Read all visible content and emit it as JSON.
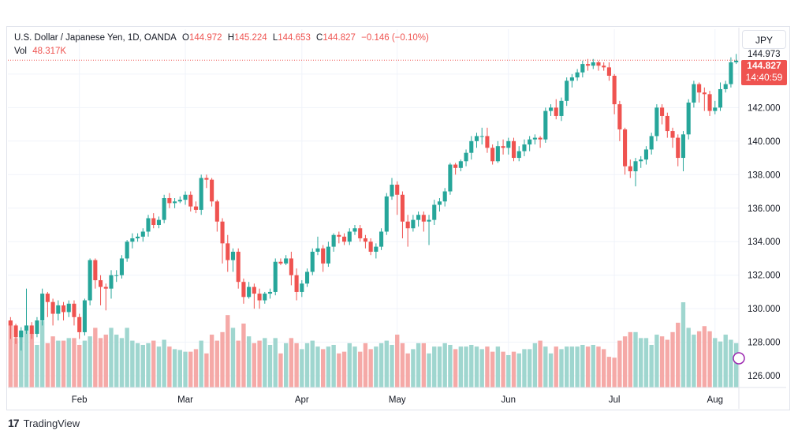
{
  "legend": {
    "symbol": "U.S. Dollar / Japanese Yen, 1D, OANDA",
    "open_label": "O",
    "open_value": "144.972",
    "high_label": "H",
    "high_value": "145.224",
    "low_label": "L",
    "low_value": "144.653",
    "close_label": "C",
    "close_value": "144.827",
    "change": "−0.146 (−0.10%)",
    "vol_label": "Vol",
    "vol_value": "48.317K"
  },
  "currency_button": "JPY",
  "price_tag": {
    "price": "144.827",
    "countdown": "14:40:59"
  },
  "top_value_label": "144.973",
  "brand": {
    "mark": "17",
    "name": "TradingView"
  },
  "colors": {
    "up": "#26a69a",
    "down": "#ef5350",
    "up_vol": "#9fd6cf",
    "down_vol": "#f5a9a7",
    "grid": "#f0f3fa"
  },
  "chart_data": {
    "type": "candlestick",
    "symbol": "USDJPY",
    "y_range": [
      125.3,
      145.5
    ],
    "y_ticks": [
      "126.000",
      "128.000",
      "130.000",
      "132.000",
      "134.000",
      "136.000",
      "138.000",
      "140.000",
      "142.000",
      "144.000"
    ],
    "y_tick_values": [
      126,
      128,
      130,
      132,
      134,
      136,
      138,
      140,
      142,
      144
    ],
    "x_labels": [
      "Feb",
      "Mar",
      "Apr",
      "May",
      "Jun",
      "Jul",
      "Aug"
    ],
    "x_label_index": [
      13,
      33,
      55,
      73,
      94,
      114,
      133
    ],
    "last_price": 144.827,
    "candles": [
      [
        129.3,
        129.0,
        128.2,
        129.5,
        0.78
      ],
      [
        129.0,
        128.3,
        127.9,
        129.1,
        0.58
      ],
      [
        128.3,
        128.7,
        127.5,
        128.9,
        0.66
      ],
      [
        128.7,
        129.0,
        128.5,
        131.2,
        0.68
      ],
      [
        129.0,
        128.5,
        128.2,
        129.2,
        0.64
      ],
      [
        128.5,
        129.3,
        128.3,
        129.5,
        0.5
      ],
      [
        129.3,
        130.9,
        129.0,
        131.2,
        0.78
      ],
      [
        130.9,
        130.4,
        129.5,
        131.0,
        0.52
      ],
      [
        130.4,
        129.7,
        129.0,
        130.6,
        0.6
      ],
      [
        129.7,
        130.2,
        129.3,
        130.5,
        0.55
      ],
      [
        130.2,
        129.8,
        129.3,
        130.4,
        0.55
      ],
      [
        129.8,
        130.3,
        129.5,
        130.5,
        0.58
      ],
      [
        130.3,
        129.5,
        129.0,
        130.5,
        0.58
      ],
      [
        129.5,
        128.6,
        128.2,
        129.7,
        0.5
      ],
      [
        128.6,
        130.5,
        128.4,
        130.6,
        0.55
      ],
      [
        130.5,
        132.9,
        130.2,
        133.0,
        0.6
      ],
      [
        132.9,
        131.7,
        131.2,
        133.0,
        0.7
      ],
      [
        131.7,
        131.3,
        130.2,
        132.0,
        0.58
      ],
      [
        131.3,
        131.2,
        129.9,
        131.5,
        0.62
      ],
      [
        131.2,
        132.0,
        130.6,
        132.3,
        0.7
      ],
      [
        132.0,
        132.0,
        131.6,
        132.3,
        0.62
      ],
      [
        132.0,
        133.0,
        131.8,
        133.2,
        0.58
      ],
      [
        133.0,
        134.0,
        132.8,
        134.1,
        0.7
      ],
      [
        134.0,
        134.2,
        133.6,
        134.5,
        0.55
      ],
      [
        134.2,
        134.3,
        134.0,
        134.5,
        0.52
      ],
      [
        134.3,
        134.6,
        134.0,
        134.8,
        0.5
      ],
      [
        134.6,
        135.4,
        134.3,
        135.6,
        0.52
      ],
      [
        135.4,
        135.0,
        134.8,
        135.7,
        0.55
      ],
      [
        135.0,
        135.3,
        134.8,
        135.5,
        0.48
      ],
      [
        135.3,
        136.6,
        135.1,
        136.8,
        0.56
      ],
      [
        136.6,
        136.3,
        136.0,
        136.9,
        0.48
      ],
      [
        136.3,
        136.4,
        136.0,
        136.6,
        0.45
      ],
      [
        136.4,
        136.5,
        136.3,
        136.7,
        0.44
      ],
      [
        136.5,
        136.8,
        136.2,
        137.0,
        0.42
      ],
      [
        136.8,
        136.1,
        135.8,
        137.0,
        0.42
      ],
      [
        136.1,
        135.9,
        135.7,
        136.4,
        0.45
      ],
      [
        135.9,
        137.8,
        135.6,
        138.0,
        0.55
      ],
      [
        137.8,
        137.7,
        137.2,
        138.0,
        0.4
      ],
      [
        137.7,
        136.4,
        136.1,
        137.8,
        0.62
      ],
      [
        136.4,
        135.2,
        134.6,
        136.5,
        0.55
      ],
      [
        135.2,
        133.9,
        132.7,
        135.4,
        0.65
      ],
      [
        133.9,
        132.9,
        132.2,
        134.4,
        0.85
      ],
      [
        132.9,
        133.4,
        132.2,
        133.6,
        0.7
      ],
      [
        133.4,
        131.6,
        131.2,
        133.6,
        0.55
      ],
      [
        131.6,
        130.7,
        130.3,
        131.8,
        0.75
      ],
      [
        130.7,
        131.3,
        130.6,
        131.6,
        0.6
      ],
      [
        131.3,
        130.9,
        130.0,
        131.5,
        0.52
      ],
      [
        130.9,
        130.5,
        130.0,
        131.2,
        0.55
      ],
      [
        130.5,
        130.9,
        130.3,
        131.0,
        0.58
      ],
      [
        130.9,
        131.0,
        130.6,
        131.2,
        0.5
      ],
      [
        131.0,
        132.8,
        130.8,
        133.0,
        0.58
      ],
      [
        132.8,
        132.7,
        132.6,
        133.0,
        0.4
      ],
      [
        132.7,
        133.0,
        132.6,
        133.2,
        0.52
      ],
      [
        133.0,
        132.0,
        131.4,
        133.4,
        0.58
      ],
      [
        132.0,
        131.0,
        130.5,
        132.4,
        0.52
      ],
      [
        131.0,
        131.5,
        130.7,
        131.7,
        0.45
      ],
      [
        131.5,
        132.2,
        131.3,
        132.4,
        0.52
      ],
      [
        132.2,
        133.4,
        132.0,
        133.6,
        0.55
      ],
      [
        133.4,
        133.6,
        133.2,
        134.3,
        0.48
      ],
      [
        133.6,
        132.7,
        132.2,
        133.8,
        0.45
      ],
      [
        132.7,
        133.7,
        132.5,
        134.0,
        0.48
      ],
      [
        133.7,
        134.4,
        133.4,
        134.5,
        0.5
      ],
      [
        134.4,
        134.3,
        133.9,
        134.6,
        0.4
      ],
      [
        134.3,
        134.0,
        133.8,
        134.5,
        0.42
      ],
      [
        134.0,
        134.6,
        133.8,
        134.8,
        0.52
      ],
      [
        134.6,
        134.8,
        134.4,
        135.0,
        0.48
      ],
      [
        134.8,
        134.2,
        134.0,
        135.0,
        0.42
      ],
      [
        134.2,
        134.0,
        133.6,
        134.4,
        0.52
      ],
      [
        134.0,
        133.4,
        133.2,
        134.2,
        0.45
      ],
      [
        133.4,
        133.7,
        133.0,
        133.9,
        0.48
      ],
      [
        133.7,
        134.6,
        133.5,
        134.8,
        0.52
      ],
      [
        134.6,
        136.7,
        134.4,
        136.9,
        0.55
      ],
      [
        136.7,
        137.4,
        136.5,
        137.8,
        0.5
      ],
      [
        137.4,
        136.8,
        135.6,
        137.6,
        0.62
      ],
      [
        136.8,
        135.2,
        134.2,
        137.0,
        0.52
      ],
      [
        135.2,
        134.8,
        133.7,
        135.6,
        0.4
      ],
      [
        134.8,
        135.3,
        134.6,
        135.6,
        0.45
      ],
      [
        135.3,
        135.6,
        134.9,
        135.8,
        0.52
      ],
      [
        135.6,
        135.2,
        134.6,
        135.8,
        0.52
      ],
      [
        135.2,
        135.3,
        133.8,
        135.6,
        0.4
      ],
      [
        135.3,
        136.2,
        135.0,
        136.5,
        0.48
      ],
      [
        136.2,
        136.4,
        135.8,
        136.6,
        0.48
      ],
      [
        136.4,
        137.0,
        136.1,
        137.2,
        0.52
      ],
      [
        137.0,
        138.6,
        136.8,
        138.7,
        0.5
      ],
      [
        138.6,
        138.4,
        138.0,
        138.7,
        0.45
      ],
      [
        138.4,
        138.8,
        138.2,
        138.9,
        0.48
      ],
      [
        138.8,
        139.3,
        138.5,
        139.5,
        0.48
      ],
      [
        139.3,
        140.0,
        138.9,
        140.3,
        0.5
      ],
      [
        140.0,
        140.3,
        139.6,
        140.5,
        0.48
      ],
      [
        140.3,
        140.3,
        139.8,
        140.8,
        0.45
      ],
      [
        140.3,
        139.6,
        139.3,
        140.8,
        0.48
      ],
      [
        139.6,
        138.8,
        138.6,
        139.8,
        0.42
      ],
      [
        138.8,
        139.7,
        138.7,
        140.0,
        0.48
      ],
      [
        139.7,
        139.6,
        139.2,
        140.1,
        0.42
      ],
      [
        139.6,
        140.0,
        139.2,
        140.2,
        0.38
      ],
      [
        140.0,
        139.0,
        138.8,
        140.2,
        0.42
      ],
      [
        139.0,
        139.4,
        138.8,
        139.7,
        0.4
      ],
      [
        139.4,
        139.8,
        139.1,
        140.1,
        0.45
      ],
      [
        139.8,
        140.1,
        139.4,
        140.3,
        0.45
      ],
      [
        140.1,
        140.2,
        139.8,
        140.4,
        0.52
      ],
      [
        140.2,
        140.1,
        139.6,
        140.3,
        0.55
      ],
      [
        140.1,
        141.8,
        139.9,
        142.0,
        0.48
      ],
      [
        141.8,
        142.0,
        141.5,
        142.2,
        0.4
      ],
      [
        142.0,
        141.5,
        141.3,
        142.5,
        0.48
      ],
      [
        141.5,
        142.4,
        141.2,
        142.6,
        0.45
      ],
      [
        142.4,
        143.6,
        142.1,
        143.8,
        0.48
      ],
      [
        143.6,
        143.8,
        143.2,
        144.0,
        0.48
      ],
      [
        143.8,
        144.1,
        143.6,
        144.3,
        0.48
      ],
      [
        144.1,
        144.6,
        143.8,
        144.8,
        0.5
      ],
      [
        144.6,
        144.5,
        144.2,
        144.9,
        0.48
      ],
      [
        144.5,
        144.7,
        144.3,
        144.9,
        0.5
      ],
      [
        144.7,
        144.5,
        144.2,
        144.8,
        0.48
      ],
      [
        144.5,
        144.4,
        144.2,
        144.7,
        0.45
      ],
      [
        144.4,
        143.9,
        143.6,
        144.7,
        0.36
      ],
      [
        143.9,
        142.2,
        141.6,
        144.0,
        0.35
      ],
      [
        142.2,
        140.7,
        140.0,
        142.4,
        0.55
      ],
      [
        140.7,
        138.5,
        138.0,
        140.8,
        0.6
      ],
      [
        138.5,
        138.2,
        137.8,
        138.9,
        0.65
      ],
      [
        138.2,
        138.8,
        137.3,
        139.0,
        0.65
      ],
      [
        138.8,
        138.9,
        138.4,
        139.1,
        0.58
      ],
      [
        138.9,
        139.5,
        138.6,
        139.7,
        0.58
      ],
      [
        139.5,
        140.3,
        139.2,
        140.5,
        0.5
      ],
      [
        140.3,
        142.0,
        140.0,
        142.2,
        0.62
      ],
      [
        142.0,
        141.5,
        141.0,
        142.2,
        0.6
      ],
      [
        141.5,
        140.6,
        140.2,
        141.7,
        0.56
      ],
      [
        140.6,
        140.2,
        139.6,
        140.8,
        0.65
      ],
      [
        140.2,
        139.0,
        138.5,
        140.4,
        0.76
      ],
      [
        139.0,
        140.4,
        138.2,
        140.6,
        1.0
      ],
      [
        140.4,
        142.3,
        140.1,
        142.5,
        0.7
      ],
      [
        142.3,
        143.4,
        142.0,
        143.6,
        0.62
      ],
      [
        143.4,
        142.9,
        142.3,
        143.5,
        0.66
      ],
      [
        142.9,
        142.8,
        141.8,
        143.2,
        0.72
      ],
      [
        142.8,
        141.8,
        141.5,
        143.0,
        0.66
      ],
      [
        141.8,
        142.0,
        141.6,
        142.4,
        0.58
      ],
      [
        142.0,
        143.1,
        141.8,
        143.5,
        0.54
      ],
      [
        143.1,
        143.4,
        142.9,
        143.6,
        0.62
      ],
      [
        143.4,
        144.7,
        143.2,
        145.0,
        0.56
      ],
      [
        144.7,
        144.8,
        144.6,
        145.2,
        0.52
      ]
    ]
  }
}
